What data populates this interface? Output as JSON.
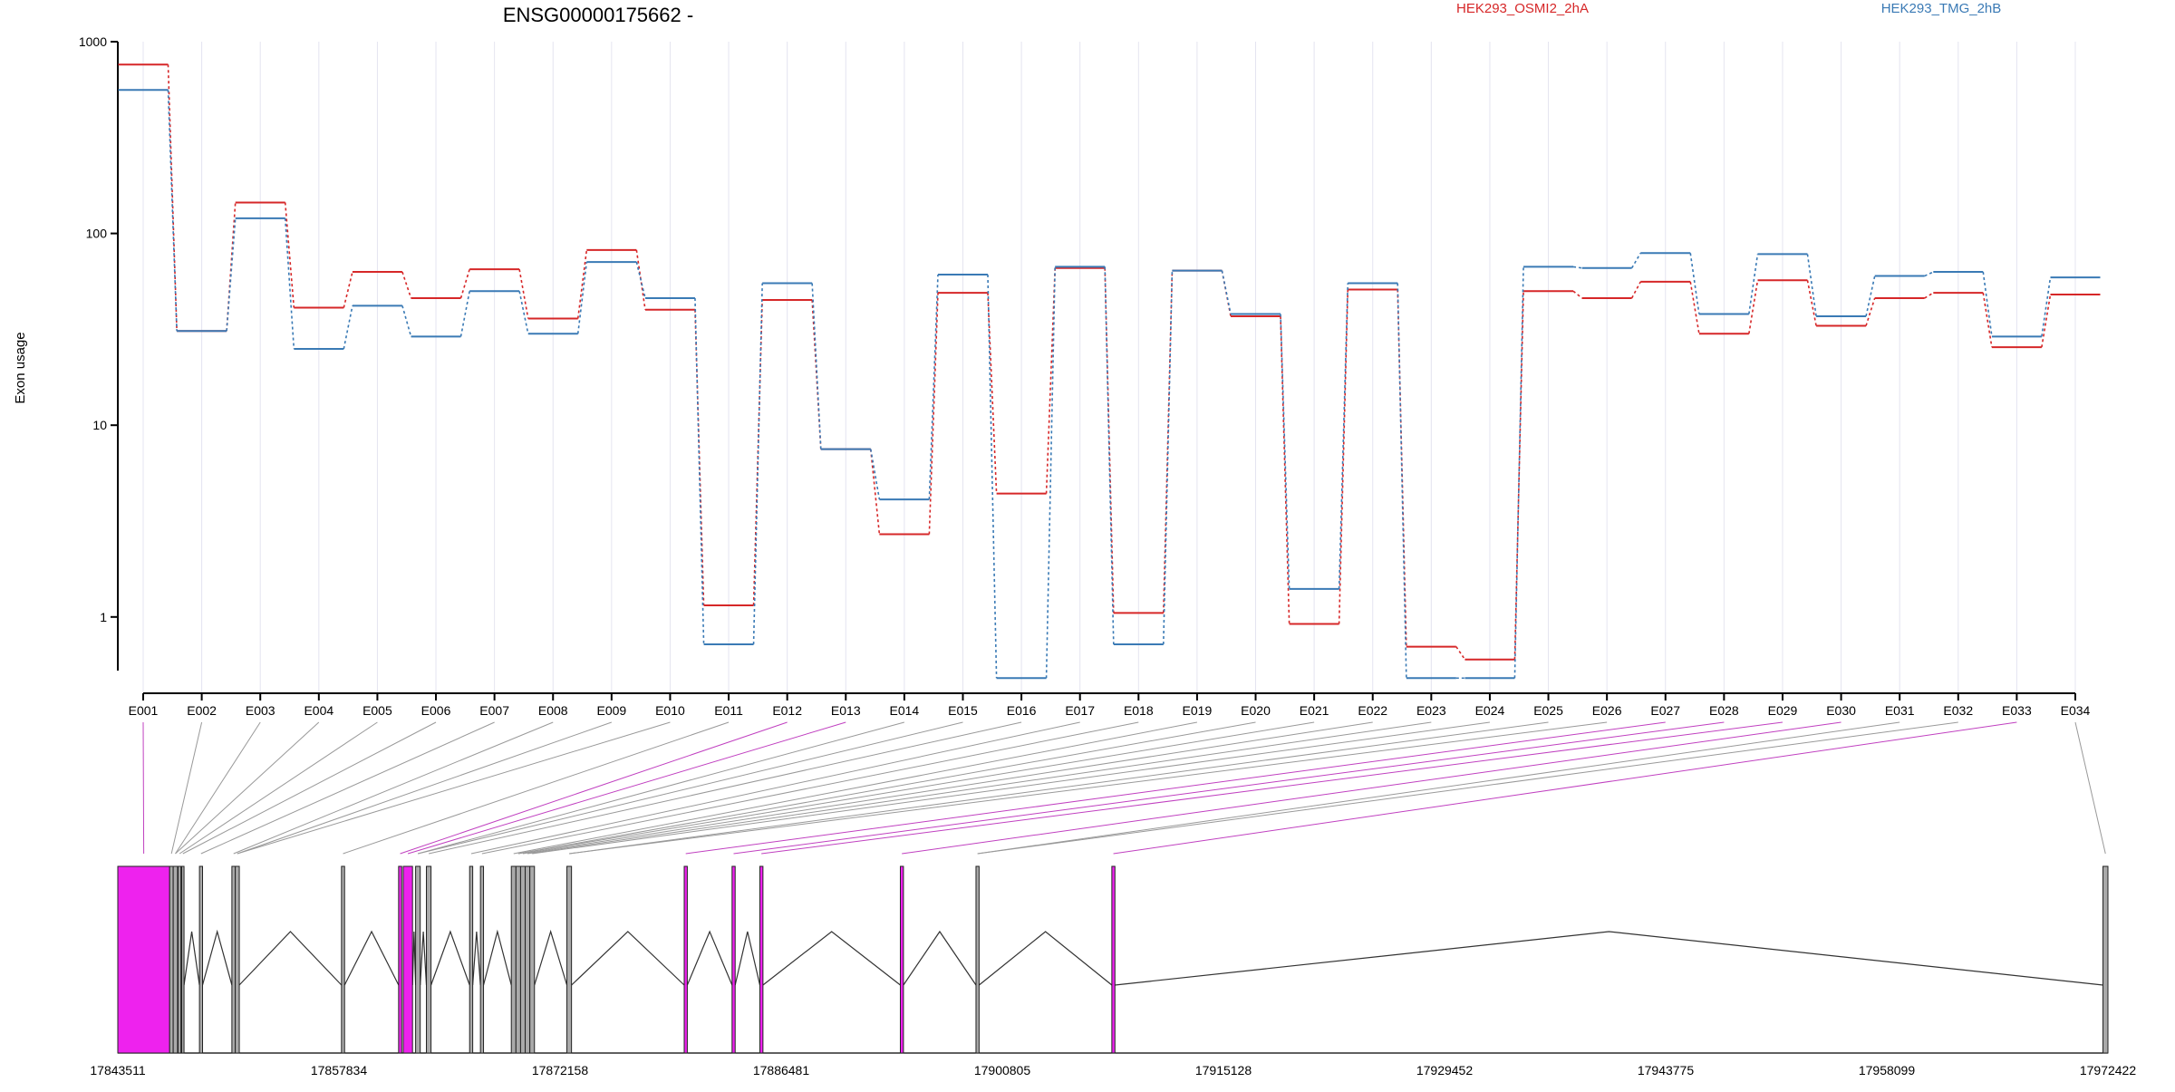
{
  "chart_data": {
    "type": "line",
    "title": "ENSG00000175662 -",
    "ylabel": "Exon usage",
    "xlabel": "",
    "y_scale": "log",
    "ylim": [
      0.4,
      1000
    ],
    "y_ticks": [
      {
        "value": 1,
        "label": "1"
      },
      {
        "value": 10,
        "label": "10"
      },
      {
        "value": 100,
        "label": "100"
      },
      {
        "value": 1000,
        "label": "1000"
      }
    ],
    "grid": "vertical",
    "legend_placement": "top",
    "categories": [
      "E001",
      "E002",
      "E003",
      "E004",
      "E005",
      "E006",
      "E007",
      "E008",
      "E009",
      "E010",
      "E011",
      "E012",
      "E013",
      "E014",
      "E015",
      "E016",
      "E017",
      "E018",
      "E019",
      "E020",
      "E021",
      "E022",
      "E023",
      "E024",
      "E025",
      "E026",
      "E027",
      "E028",
      "E029",
      "E030",
      "E031",
      "E032",
      "E033",
      "E034"
    ],
    "series": [
      {
        "name": "HEK293_OSMI2_2hA",
        "color": "#d62728",
        "values": [
          760,
          31,
          145,
          41,
          63,
          46,
          65,
          36,
          82,
          40,
          1.15,
          45,
          7.5,
          2.7,
          49,
          4.4,
          66,
          1.05,
          64,
          37,
          0.92,
          51,
          0.7,
          0.6,
          50,
          46,
          56,
          30,
          57,
          33,
          46,
          49,
          25.5,
          48
        ]
      },
      {
        "name": "HEK293_TMG_2hB",
        "color": "#3a7ab5",
        "values": [
          560,
          31,
          120,
          25,
          42,
          29,
          50,
          30,
          71,
          46,
          0.72,
          55,
          7.5,
          4.1,
          61,
          0.48,
          67,
          0.72,
          64,
          38,
          1.4,
          55,
          0.48,
          0.48,
          67,
          66,
          79,
          38,
          78,
          37,
          60,
          63,
          29,
          59
        ]
      }
    ],
    "gene_model": {
      "coord_ticks": [
        "17843511",
        "17857834",
        "17872158",
        "17886481",
        "17900805",
        "17915128",
        "17929452",
        "17943775",
        "17958099",
        "17972422"
      ],
      "coord_min": 17843511,
      "coord_max": 17972422,
      "exons": [
        {
          "id": "E001",
          "start": 17843511,
          "end": 17846870,
          "color": "#ee22ee"
        },
        {
          "id": "E002",
          "start": 17846870,
          "end": 17847100,
          "color": "#aaaaaa"
        },
        {
          "id": "E003",
          "start": 17847100,
          "end": 17847380,
          "color": "#aaaaaa"
        },
        {
          "id": "E004",
          "start": 17847420,
          "end": 17847600,
          "color": "#aaaaaa"
        },
        {
          "id": "E005",
          "start": 17847650,
          "end": 17847800,
          "color": "#aaaaaa"
        },
        {
          "id": "E006",
          "start": 17848800,
          "end": 17849000,
          "color": "#aaaaaa"
        },
        {
          "id": "E007",
          "start": 17850900,
          "end": 17851120,
          "color": "#aaaaaa"
        },
        {
          "id": "E008",
          "start": 17851120,
          "end": 17851380,
          "color": "#aaaaaa"
        },
        {
          "id": "E009",
          "start": 17858000,
          "end": 17858200,
          "color": "#aaaaaa"
        },
        {
          "id": "E010",
          "start": 17861700,
          "end": 17861900,
          "color": "#ee22ee"
        },
        {
          "id": "E011",
          "start": 17862000,
          "end": 17862600,
          "color": "#ee22ee"
        },
        {
          "id": "E012",
          "start": 17862800,
          "end": 17863100,
          "color": "#aaaaaa"
        },
        {
          "id": "E013",
          "start": 17863500,
          "end": 17863800,
          "color": "#aaaaaa"
        },
        {
          "id": "E014",
          "start": 17866300,
          "end": 17866500,
          "color": "#aaaaaa"
        },
        {
          "id": "E015",
          "start": 17867000,
          "end": 17867200,
          "color": "#aaaaaa"
        },
        {
          "id": "E016",
          "start": 17869000,
          "end": 17869300,
          "color": "#aaaaaa"
        },
        {
          "id": "E017",
          "start": 17869300,
          "end": 17869600,
          "color": "#aaaaaa"
        },
        {
          "id": "E018",
          "start": 17869600,
          "end": 17869900,
          "color": "#aaaaaa"
        },
        {
          "id": "E019",
          "start": 17869900,
          "end": 17870200,
          "color": "#aaaaaa"
        },
        {
          "id": "E020",
          "start": 17870200,
          "end": 17870500,
          "color": "#aaaaaa"
        },
        {
          "id": "E021",
          "start": 17872600,
          "end": 17872900,
          "color": "#aaaaaa"
        },
        {
          "id": "E022",
          "start": 17880200,
          "end": 17880400,
          "color": "#ee22ee"
        },
        {
          "id": "E023",
          "start": 17883300,
          "end": 17883500,
          "color": "#ee22ee"
        },
        {
          "id": "E024",
          "start": 17885100,
          "end": 17885300,
          "color": "#ee22ee"
        },
        {
          "id": "E025",
          "start": 17894200,
          "end": 17894400,
          "color": "#ee22ee"
        },
        {
          "id": "E026",
          "start": 17899100,
          "end": 17899300,
          "color": "#aaaaaa"
        },
        {
          "id": "E027",
          "start": 17907900,
          "end": 17908100,
          "color": "#ee22ee"
        },
        {
          "id": "E028",
          "start": 17972100,
          "end": 17972422,
          "color": "#aaaaaa"
        }
      ]
    }
  }
}
